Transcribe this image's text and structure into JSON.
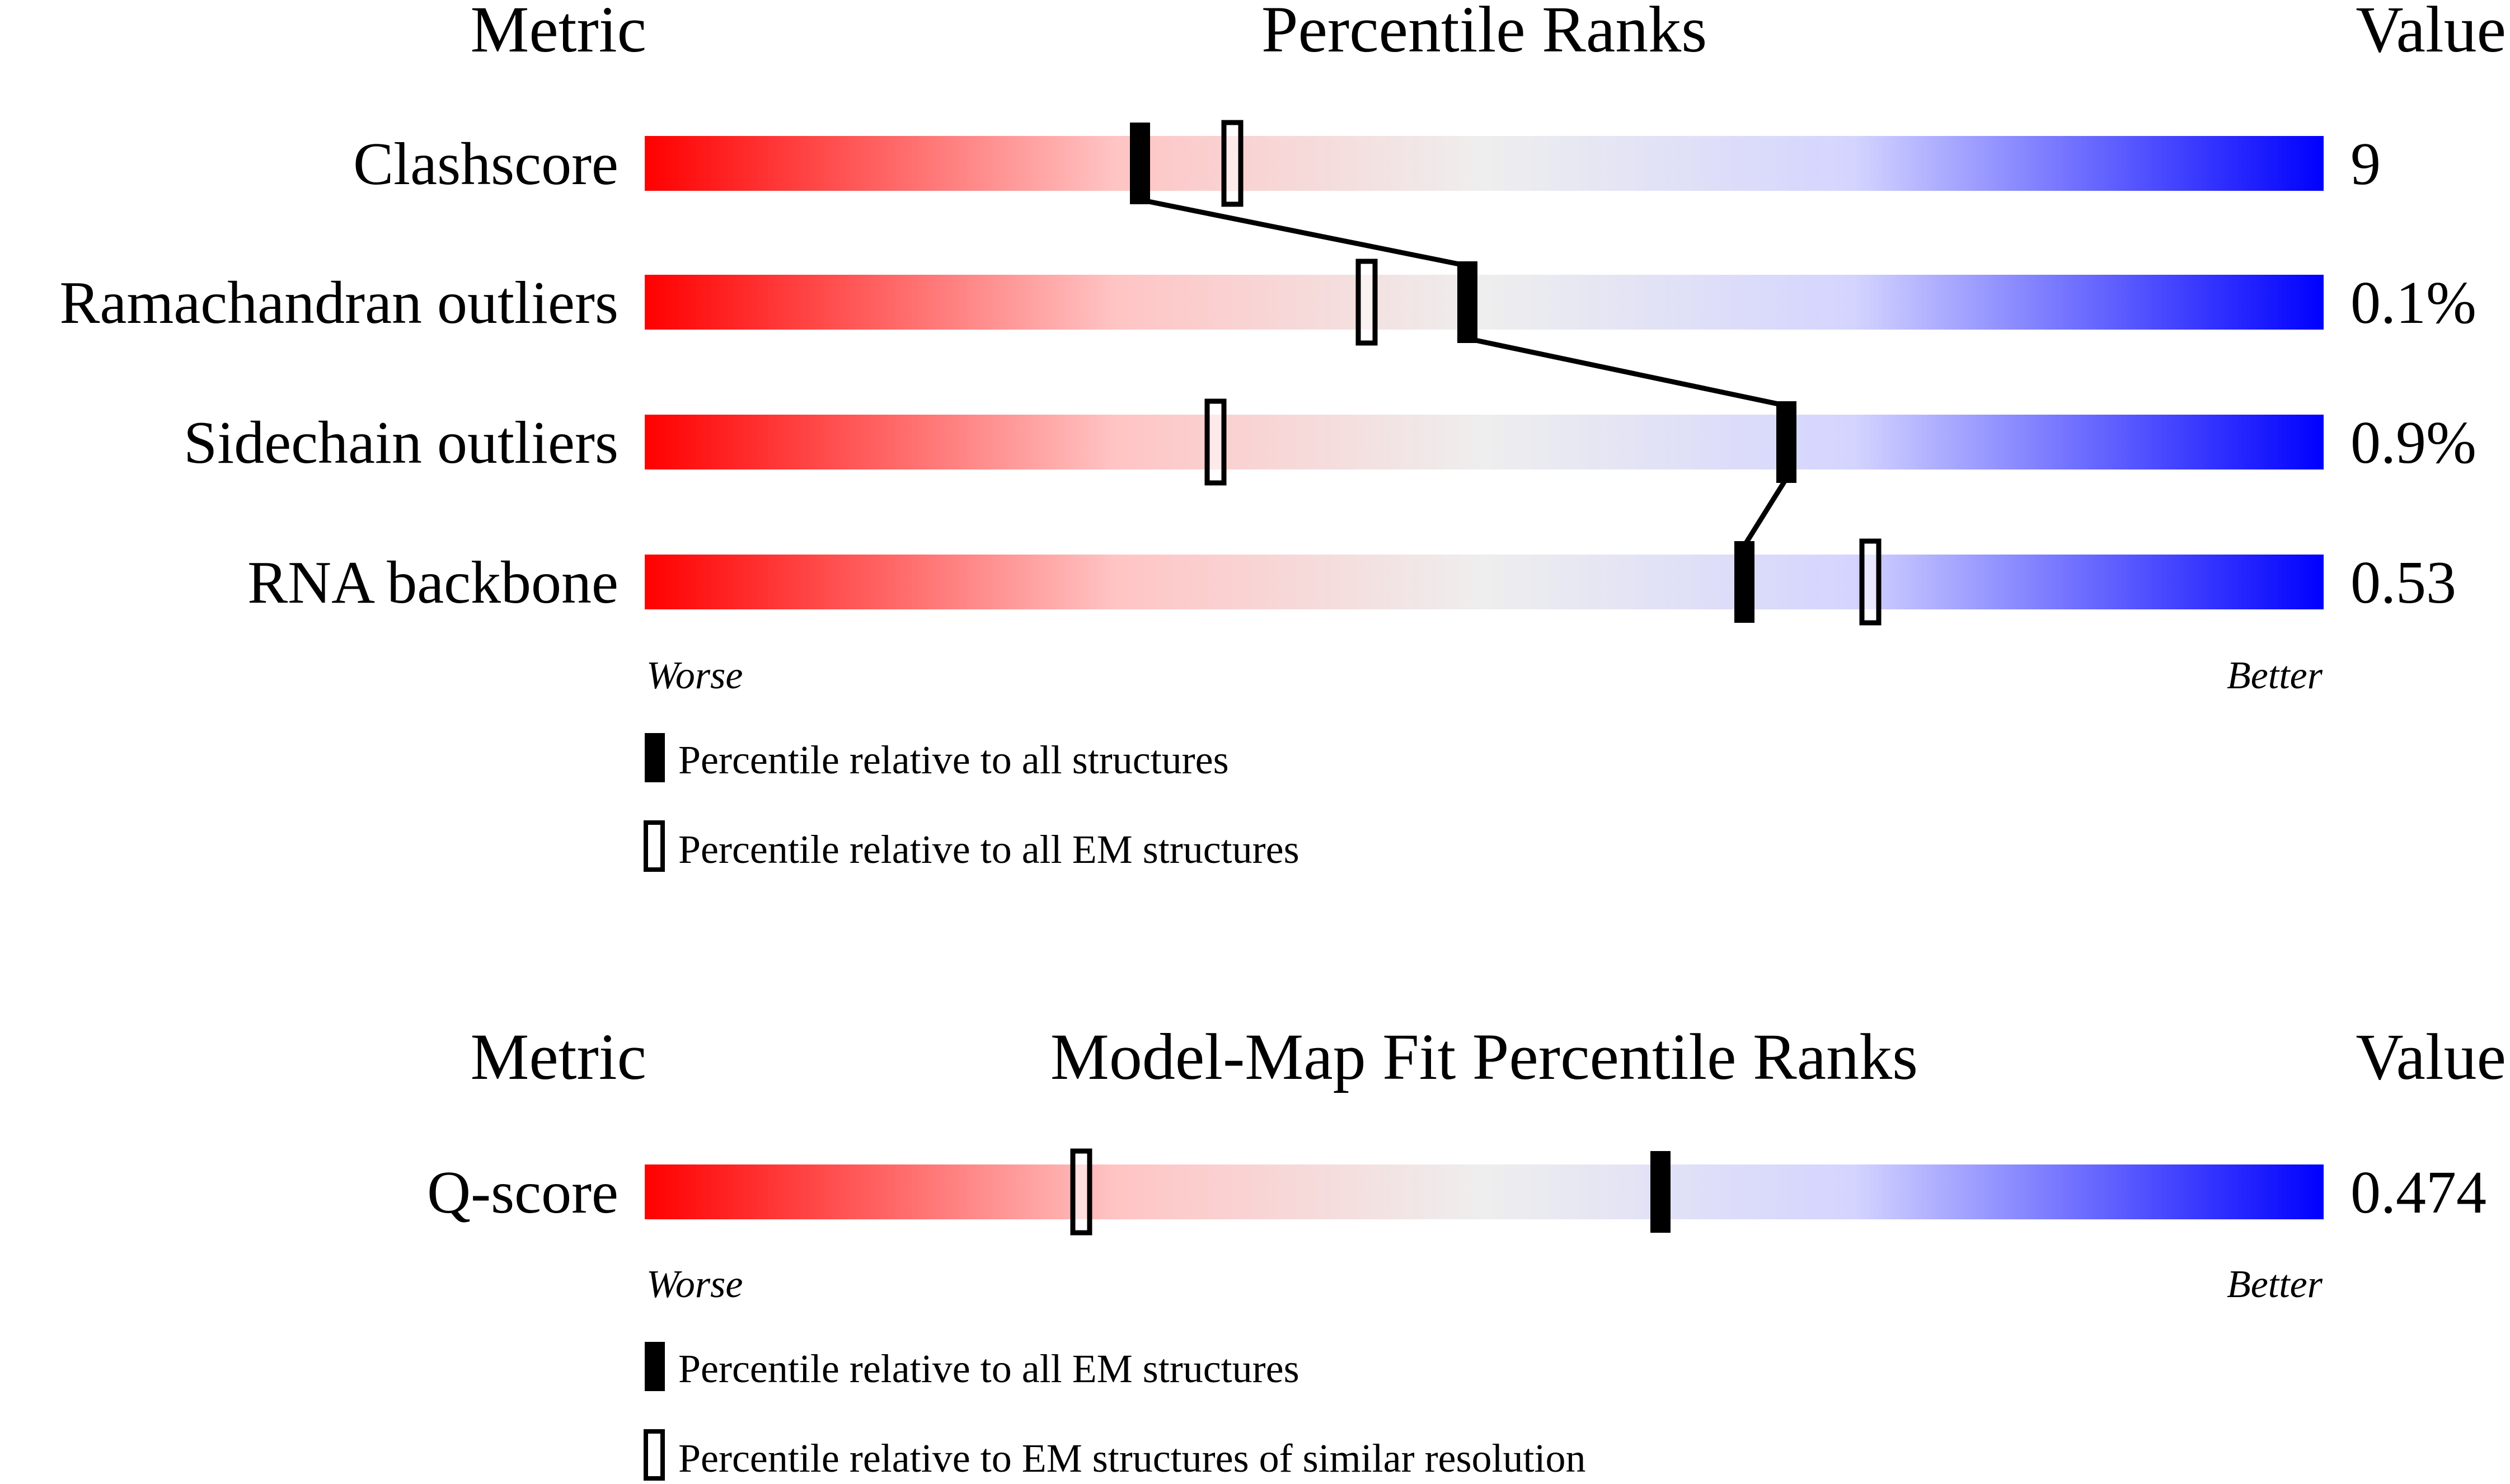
{
  "chart_data": [
    {
      "type": "percentile-bar",
      "headers": {
        "metric": "Metric",
        "title": "Percentile Ranks",
        "value": "Value"
      },
      "axis": {
        "worse": "Worse",
        "better": "Better",
        "range": [
          0,
          100
        ]
      },
      "legend": {
        "filled": "Percentile relative to all structures",
        "open": "Percentile relative to all EM structures"
      },
      "connect_filled_markers": true,
      "rows": [
        {
          "metric": "Clashscore",
          "value": "9",
          "filled": 29.5,
          "open": 35
        },
        {
          "metric": "Ramachandran outliers",
          "value": "0.1%",
          "filled": 49,
          "open": 43
        },
        {
          "metric": "Sidechain outliers",
          "value": "0.9%",
          "filled": 68,
          "open": 34
        },
        {
          "metric": "RNA backbone",
          "value": "0.53",
          "filled": 65.5,
          "open": 73
        }
      ]
    },
    {
      "type": "percentile-bar",
      "headers": {
        "metric": "Metric",
        "title": "Model-Map Fit Percentile Ranks",
        "value": "Value"
      },
      "axis": {
        "worse": "Worse",
        "better": "Better",
        "range": [
          0,
          100
        ]
      },
      "legend": {
        "filled": "Percentile relative to all EM structures",
        "open": "Percentile relative to EM structures of similar resolution"
      },
      "connect_filled_markers": false,
      "rows": [
        {
          "metric": "Q-score",
          "value": "0.474",
          "filled": 60.5,
          "open": 26
        }
      ]
    }
  ],
  "colors": {
    "worse": "#ff0000",
    "middle": "#eeeeee",
    "better": "#0000ff",
    "marker": "#000000"
  }
}
